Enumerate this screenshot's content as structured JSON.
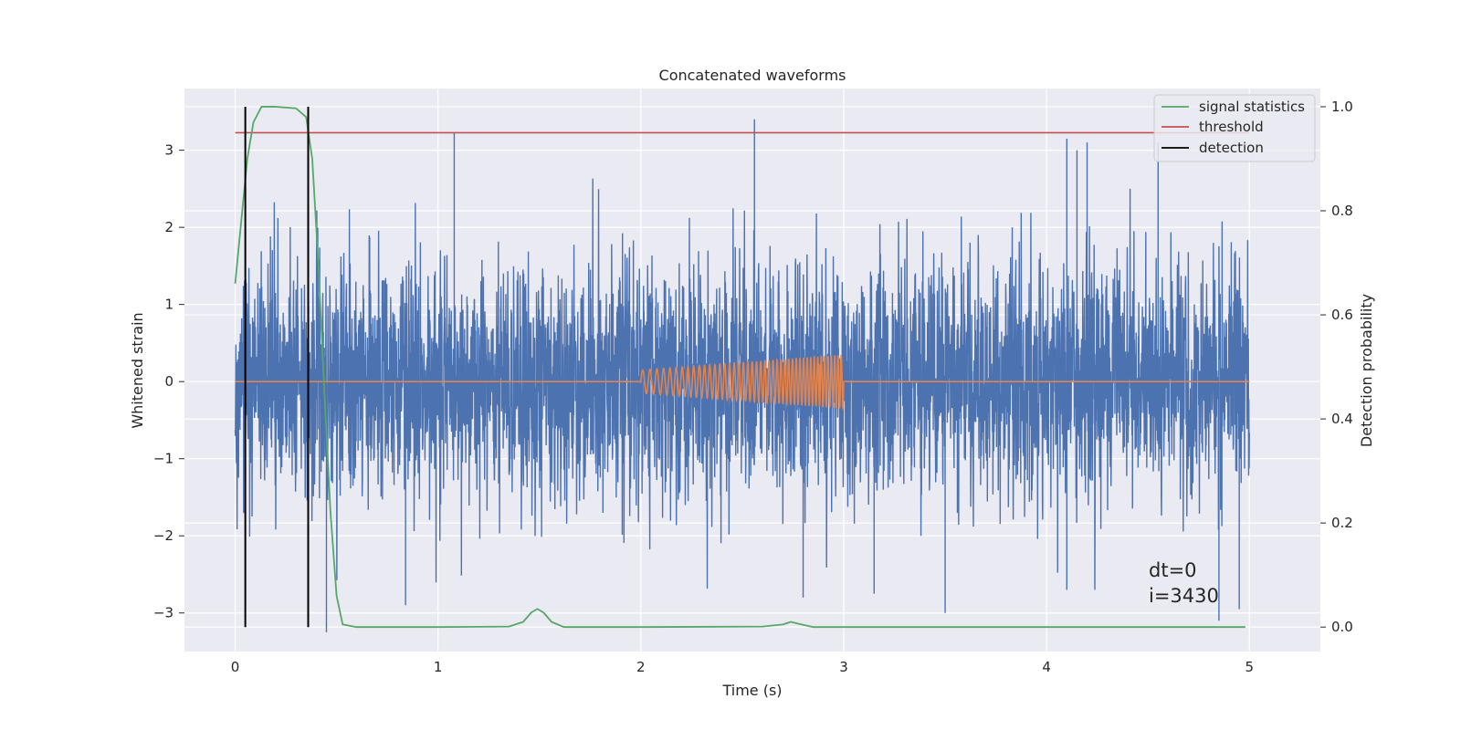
{
  "chart_data": {
    "type": "line",
    "title": "Concatenated waveforms",
    "xlabel": "Time (s)",
    "ylabel": "Whitened strain",
    "y2label": "Detection probability",
    "xlim": [
      -0.25,
      5.35
    ],
    "ylim": [
      -3.5,
      3.8
    ],
    "y2lim": [
      -0.047,
      1.035
    ],
    "x_ticks": [
      0,
      1,
      2,
      3,
      4,
      5
    ],
    "x_tick_labels": [
      "0",
      "1",
      "2",
      "3",
      "4",
      "5"
    ],
    "y_ticks": [
      -3,
      -2,
      -1,
      0,
      1,
      2,
      3
    ],
    "y_tick_labels": [
      "−3",
      "−2",
      "−1",
      "0",
      "1",
      "2",
      "3"
    ],
    "y2_ticks": [
      0.0,
      0.2,
      0.4,
      0.6,
      0.8,
      1.0
    ],
    "y2_tick_labels": [
      "0.0",
      "0.2",
      "0.4",
      "0.6",
      "0.8",
      "1.0"
    ],
    "grid": true,
    "legend_position": "top-right",
    "colors": {
      "noise": "#4c72b0",
      "chirp": "#dd8452",
      "signal_statistics": "#55a868",
      "threshold": "#c44e52",
      "detection": "#000000",
      "plot_background": "#eaeaf2",
      "grid": "#ffffff"
    },
    "series": [
      {
        "key": "noise",
        "axis": "left",
        "x_range": [
          0,
          5
        ],
        "sigma": 0.75,
        "envelope_peaks": [
          {
            "x": 1.08,
            "y": 3.22
          },
          {
            "x": 2.56,
            "y": 3.4
          },
          {
            "x": 4.1,
            "y": 3.15
          },
          {
            "x": 4.15,
            "y": 3.0
          },
          {
            "x": 4.2,
            "y": 3.1
          },
          {
            "x": 4.55,
            "y": 3.1
          },
          {
            "x": 4.1,
            "y": -2.7
          },
          {
            "x": 4.85,
            "y": -3.1
          },
          {
            "x": 0.45,
            "y": -3.25
          },
          {
            "x": 0.84,
            "y": -2.9
          },
          {
            "x": 2.8,
            "y": -2.8
          },
          {
            "x": 3.5,
            "y": -3.0
          },
          {
            "x": 4.95,
            "y": -2.95
          },
          {
            "x": 3.15,
            "y": -2.75
          }
        ]
      },
      {
        "key": "chirp",
        "axis": "left",
        "x_range": [
          2.0,
          3.0
        ],
        "amplitude_start": 0.15,
        "amplitude_end": 0.35,
        "cycles": 45
      },
      {
        "name": "signal statistics",
        "key": "signal_statistics",
        "axis": "right",
        "x": [
          0.0,
          0.03,
          0.06,
          0.09,
          0.13,
          0.2,
          0.3,
          0.35,
          0.38,
          0.41,
          0.44,
          0.47,
          0.5,
          0.53,
          0.6,
          1.0,
          1.35,
          1.42,
          1.46,
          1.49,
          1.52,
          1.56,
          1.62,
          2.0,
          2.6,
          2.7,
          2.74,
          2.78,
          2.85,
          3.2,
          4.0,
          4.98
        ],
        "values": [
          0.66,
          0.78,
          0.9,
          0.97,
          1.0,
          1.0,
          0.997,
          0.98,
          0.9,
          0.7,
          0.45,
          0.22,
          0.06,
          0.005,
          0.0,
          0.0,
          0.001,
          0.01,
          0.028,
          0.035,
          0.028,
          0.01,
          0.0,
          0.0,
          0.001,
          0.005,
          0.01,
          0.006,
          0.0,
          0.0,
          0.0,
          0.0
        ]
      },
      {
        "name": "threshold",
        "key": "threshold",
        "axis": "right",
        "x": [
          0,
          5
        ],
        "values": [
          0.95,
          0.95
        ]
      },
      {
        "name": "detection",
        "key": "detection",
        "axis": "right",
        "type": "vlines",
        "x": [
          0.05,
          0.36
        ],
        "y_range": [
          0.0,
          1.0
        ]
      }
    ],
    "legend": [
      "signal statistics",
      "threshold",
      "detection"
    ],
    "annotations": [
      "dt=0",
      "i=3430"
    ]
  }
}
